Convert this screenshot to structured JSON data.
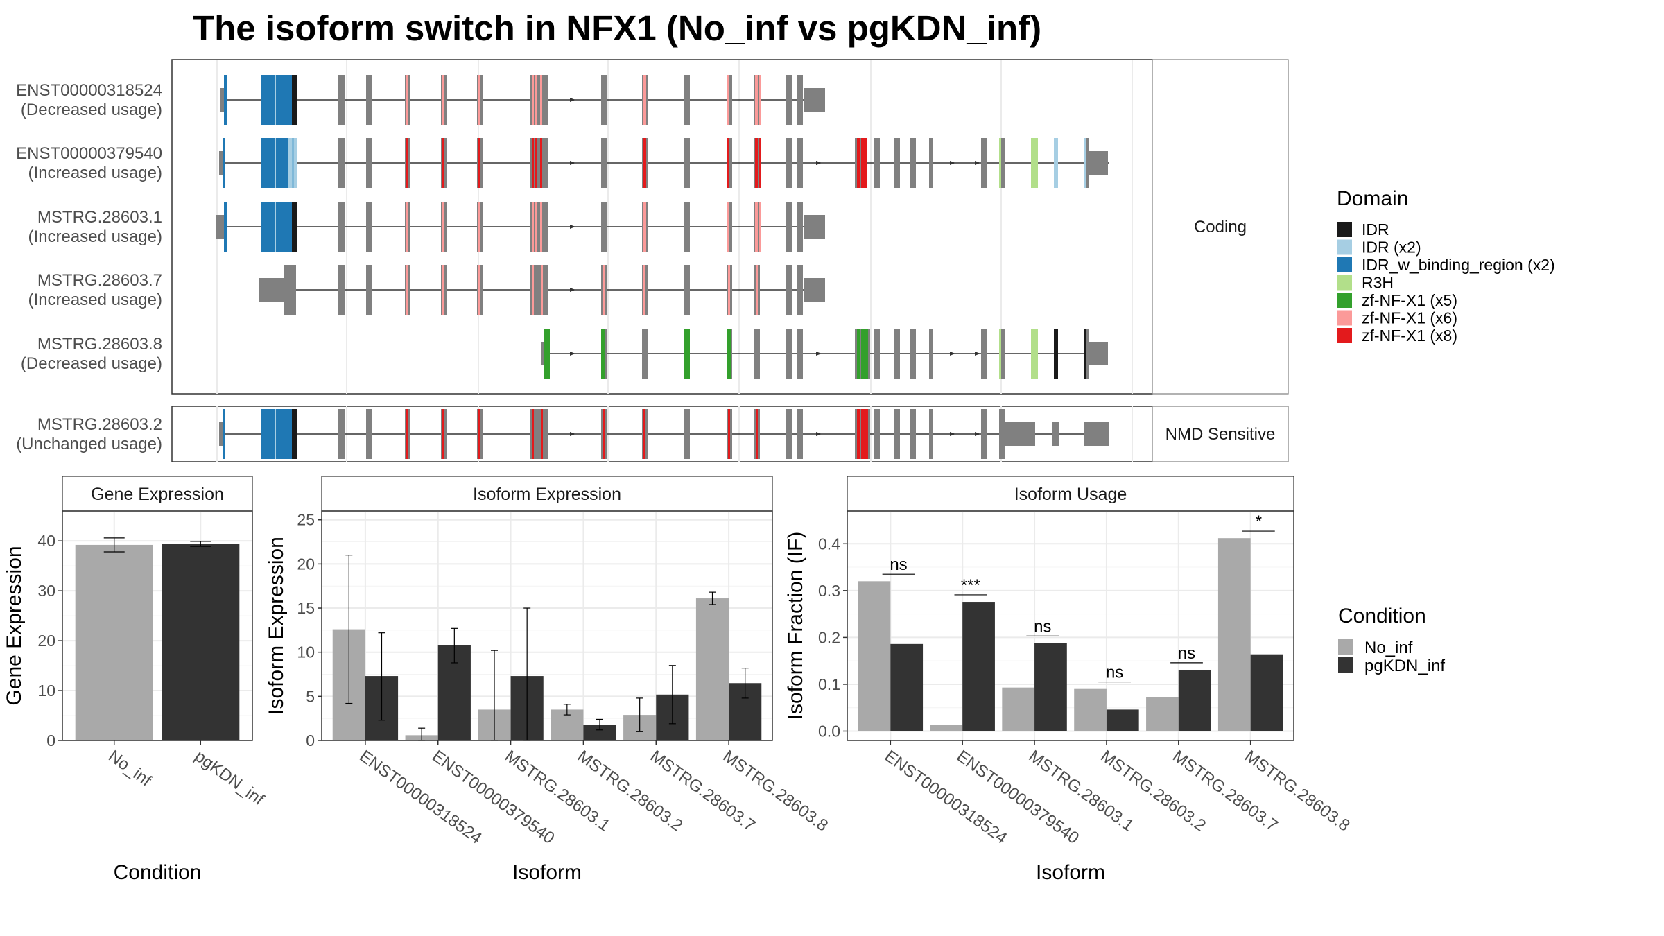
{
  "title": "The isoform switch in NFX1 (No_inf vs pgKDN_inf)",
  "colors": {
    "no_inf": "#a9a9a9",
    "pgkdn_inf": "#333333",
    "exon": "#808080",
    "IDR": "#1a1a1a",
    "IDR (x2)": "#a6cee3",
    "IDR_w_binding_region (x2)": "#1f78b4",
    "R3H": "#b2df8a",
    "zf-NF-X1 (x5)": "#33a02c",
    "zf-NF-X1 (x6)": "#fb9a99",
    "zf-NF-X1 (x8)": "#e31a1c"
  },
  "structure": {
    "coding_label": "Coding",
    "nmd_label": "NMD Sensitive",
    "isoforms": [
      {
        "id": "ENST00000318524",
        "usage": "(Decreased usage)",
        "group": "coding"
      },
      {
        "id": "ENST00000379540",
        "usage": "(Increased usage)",
        "group": "coding"
      },
      {
        "id": "MSTRG.28603.1",
        "usage": "(Increased usage)",
        "group": "coding"
      },
      {
        "id": "MSTRG.28603.7",
        "usage": "(Increased usage)",
        "group": "coding"
      },
      {
        "id": "MSTRG.28603.8",
        "usage": "(Decreased usage)",
        "group": "coding"
      },
      {
        "id": "MSTRG.28603.2",
        "usage": "(Unchanged usage)",
        "group": "nmd"
      }
    ]
  },
  "legend_domain": {
    "title": "Domain",
    "items": [
      "IDR",
      "IDR (x2)",
      "IDR_w_binding_region (x2)",
      "R3H",
      "zf-NF-X1 (x5)",
      "zf-NF-X1 (x6)",
      "zf-NF-X1 (x8)"
    ]
  },
  "legend_condition": {
    "title": "Condition",
    "items": [
      "No_inf",
      "pgKDN_inf"
    ]
  },
  "chart_data": [
    {
      "type": "bar",
      "title": "Gene Expression",
      "xlabel": "Condition",
      "ylabel": "Gene Expression",
      "categories": [
        "No_inf",
        "pgKDN_inf"
      ],
      "values": [
        39.2,
        39.4
      ],
      "errors": [
        [
          37.8,
          40.6
        ],
        [
          38.9,
          39.9
        ]
      ],
      "ylim": [
        0,
        46
      ],
      "yticks": [
        0,
        10,
        20,
        30,
        40
      ],
      "grid": true
    },
    {
      "type": "bar",
      "title": "Isoform Expression",
      "xlabel": "Isoform",
      "ylabel": "Isoform Expression",
      "categories": [
        "ENST00000318524",
        "ENST00000379540",
        "MSTRG.28603.1",
        "MSTRG.28603.2",
        "MSTRG.28603.7",
        "MSTRG.28603.8"
      ],
      "series": [
        {
          "name": "No_inf",
          "values": [
            12.6,
            0.6,
            3.5,
            3.5,
            2.9,
            16.1
          ],
          "errors": [
            [
              4.2,
              21.0
            ],
            [
              0.0,
              1.4
            ],
            [
              0.0,
              10.2
            ],
            [
              2.9,
              4.1
            ],
            [
              1.0,
              4.8
            ],
            [
              15.4,
              16.8
            ]
          ]
        },
        {
          "name": "pgKDN_inf",
          "values": [
            7.3,
            10.8,
            7.3,
            1.8,
            5.2,
            6.5
          ],
          "errors": [
            [
              2.3,
              12.2
            ],
            [
              8.8,
              12.7
            ],
            [
              0.0,
              15.0
            ],
            [
              1.2,
              2.4
            ],
            [
              1.9,
              8.5
            ],
            [
              4.8,
              8.2
            ]
          ]
        }
      ],
      "ylim": [
        0,
        26
      ],
      "yticks": [
        0,
        5,
        10,
        15,
        20,
        25
      ],
      "grid": true
    },
    {
      "type": "bar",
      "title": "Isoform Usage",
      "xlabel": "Isoform",
      "ylabel": "Isoform Fraction (IF)",
      "categories": [
        "ENST00000318524",
        "ENST00000379540",
        "MSTRG.28603.1",
        "MSTRG.28603.2",
        "MSTRG.28603.7",
        "MSTRG.28603.8"
      ],
      "series": [
        {
          "name": "No_inf",
          "values": [
            0.32,
            0.013,
            0.093,
            0.09,
            0.072,
            0.412
          ]
        },
        {
          "name": "pgKDN_inf",
          "values": [
            0.186,
            0.276,
            0.188,
            0.046,
            0.131,
            0.164
          ]
        }
      ],
      "significance": [
        "ns",
        "***",
        "ns",
        "ns",
        "ns",
        "*"
      ],
      "ylim": [
        -0.02,
        0.47
      ],
      "yticks": [
        0.0,
        0.1,
        0.2,
        0.3,
        0.4
      ],
      "grid": true
    }
  ]
}
